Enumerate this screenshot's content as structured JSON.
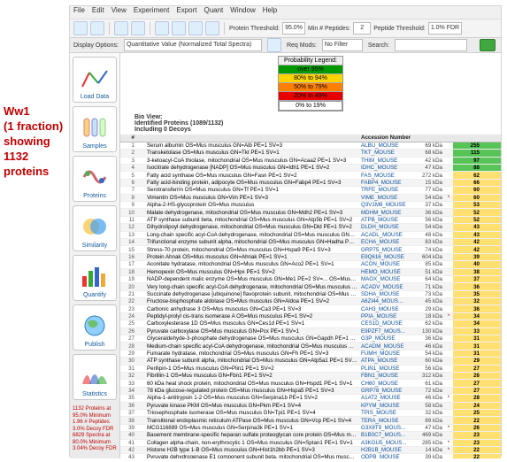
{
  "colors": {
    "accent": "#0a4f9e",
    "annot": "#c00000",
    "legend": [
      "#009900",
      "#ffd400",
      "#ff7f00",
      "#e60000",
      "#ffffff"
    ],
    "bar_best": "#56c456",
    "bar_mid": "#ffe070"
  },
  "annotation": {
    "l1": "Ww1",
    "l2": "(1 fraction)",
    "l3": "showing 1132",
    "l4": "proteins"
  },
  "menu": [
    "File",
    "Edit",
    "View",
    "Experiment",
    "Export",
    "Quant",
    "Window",
    "Help"
  ],
  "toolbar": {
    "protein_thresh_label": "Protein Threshold:",
    "protein_thresh_value": "95.0%",
    "min_pep_label": "Min # Peptides:",
    "min_pep_value": "2",
    "peptide_thresh_label": "Peptide Threshold:",
    "peptide_thresh_value": "1.0% FDR"
  },
  "display": {
    "label": "Display Options:",
    "option": "Quantitative Value (Normalized Total Spectra)",
    "req_label": "Req Mods:",
    "req_value": "No Filter",
    "search_label": "Search:"
  },
  "sidebar": {
    "items": [
      {
        "label": "Load Data",
        "svg": "lines"
      },
      {
        "label": "Samples",
        "svg": "tubes"
      },
      {
        "label": "Proteins",
        "svg": "protein"
      },
      {
        "label": "Similarity",
        "svg": "venn"
      },
      {
        "label": "Quantify",
        "svg": "bars"
      },
      {
        "label": "Publish",
        "svg": "world"
      },
      {
        "label": "Statistics",
        "svg": "curves"
      }
    ]
  },
  "stats": {
    "a": [
      "1132 Proteins at",
      "95.0% Minimum",
      "1.96 # Peptides",
      "3.0% Decoy FDR"
    ],
    "b": [
      "6829 Spectra at",
      "80.0% Minimum",
      "3.04% Decoy FDR"
    ]
  },
  "legend": {
    "title": "Probability Legend:",
    "rows": [
      "over 95%",
      "80% to 94%",
      "50% to 79%",
      "20% to 49%",
      "0% to 19%"
    ]
  },
  "bio": {
    "l1": "Bio View:",
    "l2": "Identified Proteins (1089/1132)",
    "l3": "Including 0 Decoys"
  },
  "head": {
    "acc": "Accession Number",
    "mw": "Molecular Weight",
    "grp": "Protein Grouping/Weight"
  },
  "rows": [
    {
      "n": 1,
      "name": "Serum albumin OS=Mus musculus GN=Alb PE=1 SV=3",
      "acc": "ALBU_MOUSE",
      "mw": "69 kDa",
      "dot": "",
      "v": 255
    },
    {
      "n": 2,
      "name": "Transketolase OS=Mus musculus GN=Tkt PE=1 SV=1",
      "acc": "TKT_MOUSE",
      "mw": "68 kDa",
      "dot": "",
      "v": 115
    },
    {
      "n": 3,
      "name": "3-ketoacyl-CoA thiolase, mitochondrial OS=Mus musculus GN=Acaa2 PE=1 SV=3",
      "acc": "THIM_MOUSE",
      "mw": "42 kDa",
      "dot": "",
      "v": 97
    },
    {
      "n": 4,
      "name": "Isocitrate dehydrogenase [NADP] OS=Mus musculus GN=Idh1 PE=1 SV=2",
      "acc": "IDHC_MOUSE",
      "mw": "47 kDa",
      "dot": "",
      "v": 88
    },
    {
      "n": 5,
      "name": "Fatty acid synthase OS=Mus musculus GN=Fasn PE=1 SV=2",
      "acc": "FAS_MOUSE",
      "mw": "272 kDa",
      "dot": "",
      "v": 62
    },
    {
      "n": 6,
      "name": "Fatty acid-binding protein, adipocyte OS=Mus musculus GN=Fabp4 PE=1 SV=3",
      "acc": "FABP4_MOUSE",
      "mw": "15 kDa",
      "dot": "",
      "v": 66
    },
    {
      "n": 7,
      "name": "Serotransferrin OS=Mus musculus GN=Tf PE=1 SV=1",
      "acc": "TRFE_MOUSE",
      "mw": "77 kDa",
      "dot": "",
      "v": 60
    },
    {
      "n": 8,
      "name": "Vimentin OS=Mus musculus GN=Vim PE=1 SV=3",
      "acc": "VIME_MOUSE",
      "mw": "54 kDa",
      "dot": "*",
      "v": 60
    },
    {
      "n": 9,
      "name": "Alpha-2-HS-glycoprotein OS=Mus musculus",
      "acc": "Q3V1M8_MOUSE",
      "mw": "37 kDa",
      "dot": "",
      "v": 53
    },
    {
      "n": 10,
      "name": "Malate dehydrogenase, mitochondrial OS=Mus musculus GN=Mdh2 PE=1 SV=3",
      "acc": "MDHM_MOUSE",
      "mw": "36 kDa",
      "dot": "",
      "v": 52
    },
    {
      "n": 11,
      "name": "ATP synthase subunit beta, mitochondrial OS=Mus musculus GN=Atp5b PE=1 SV=2",
      "acc": "ATPB_MOUSE",
      "mw": "56 kDa",
      "dot": "",
      "v": 52
    },
    {
      "n": 12,
      "name": "Dihydrolipoyl dehydrogenase, mitochondrial OS=Mus musculus GN=Dld PE=1 SV=2",
      "acc": "DLDH_MOUSE",
      "mw": "54 kDa",
      "dot": "",
      "v": 43
    },
    {
      "n": 13,
      "name": "Long-chain specific acyl-CoA dehydrogenase, mitochondrial OS=Mus musculus GN=Acadl PE=1 S...",
      "acc": "ACADL_MOUSE",
      "mw": "48 kDa",
      "dot": "",
      "v": 43
    },
    {
      "n": 14,
      "name": "Trifunctional enzyme subunit alpha, mitochondrial OS=Mus musculus GN=Hadha PE=1 SV=1",
      "acc": "ECHA_MOUSE",
      "mw": "83 kDa",
      "dot": "",
      "v": 42
    },
    {
      "n": 15,
      "name": "Stress-70 protein, mitochondrial OS=Mus musculus GN=Hspa9 PE=1 SV=3",
      "acc": "GRP75_MOUSE",
      "mw": "74 kDa",
      "dot": "",
      "v": 42
    },
    {
      "n": 16,
      "name": "Protein Ahnak OS=Mus musculus GN=Ahnak PE=1 SV=1",
      "acc": "E9Q616_MOUSE",
      "mw": "604 kDa",
      "dot": "",
      "v": 39
    },
    {
      "n": 17,
      "name": "Aconitate hydratase, mitochondrial OS=Mus musculus GN=Aco2 PE=1 SV=1",
      "acc": "ACON_MOUSE",
      "mw": "85 kDa",
      "dot": "",
      "v": 40
    },
    {
      "n": 18,
      "name": "Hemopexin OS=Mus musculus GN=Hpx PE=1 SV=2",
      "acc": "HEMO_MOUSE",
      "mw": "51 kDa",
      "dot": "",
      "v": 38
    },
    {
      "n": 19,
      "name": "NADP-dependent malic enzyme OS=Mus musculus GN=Me1 PE=2 SV=... OS=Mus musculus GN=Acadvl PE...",
      "acc": "MAOX_MOUSE",
      "mw": "64 kDa",
      "dot": "",
      "v": 37
    },
    {
      "n": 20,
      "name": "Very long-chain specific acyl-CoA dehydrogenase, mitochondrial OS=Mus musculus GN=Acadvl ...",
      "acc": "ACADV_MOUSE",
      "mw": "71 kDa",
      "dot": "",
      "v": 36
    },
    {
      "n": 21,
      "name": "Succinate dehydrogenase [ubiquinone] flavoprotein subunit, mitochondrial OS=Mus musculus ...",
      "acc": "SDHA_MOUSE",
      "mw": "73 kDa",
      "dot": "",
      "v": 35
    },
    {
      "n": 22,
      "name": "Fructose-bisphosphate aldolase OS=Mus musculus GN=Aldoa PE=1 SV=2",
      "acc": "A6ZI44_MOUS...",
      "mw": "45 kDa",
      "dot": "",
      "v": 32
    },
    {
      "n": 23,
      "name": "Carbonic anhydrase 3 OS=Mus musculus GN=Ca3 PE=1 SV=3",
      "acc": "CAH3_MOUSE",
      "mw": "29 kDa",
      "dot": "",
      "v": 36
    },
    {
      "n": 24,
      "name": "Peptidyl-prolyl cis-trans isomerase A OS=Mus musculus PE=1 SV=2",
      "acc": "PPIA_MOUSE",
      "mw": "18 kDa",
      "dot": "*",
      "v": 34
    },
    {
      "n": 25,
      "name": "Carboxylesterase 1D OS=Mus musculus GN=Ces1d PE=1 SV=1",
      "acc": "CES1D_MOUSE",
      "mw": "62 kDa",
      "dot": "",
      "v": 34
    },
    {
      "n": 26,
      "name": "Pyruvate carboxylase OS=Mus musculus GN=Pcx PE=1 SV=1",
      "acc": "E9PZF7_MOUS...",
      "mw": "130 kDa",
      "dot": "",
      "v": 33
    },
    {
      "n": 27,
      "name": "Glyceraldehyde-3-phosphate dehydrogenase OS=Mus musculus GN=Gapdh PE=1 SV=2",
      "acc": "G3P_MOUSE",
      "mw": "36 kDa",
      "dot": "",
      "v": 31
    },
    {
      "n": 28,
      "name": "Medium-chain specific acyl-CoA dehydrogenase, mitochondrial OS=Mus musculus GN=Acadm PE=...",
      "acc": "ACADM_MOUSE",
      "mw": "46 kDa",
      "dot": "",
      "v": 31
    },
    {
      "n": 29,
      "name": "Fumarate hydratase, mitochondrial OS=Mus musculus GN=Fh PE=1 SV=3",
      "acc": "FUMH_MOUSE",
      "mw": "54 kDa",
      "dot": "",
      "v": 31
    },
    {
      "n": 30,
      "name": "ATP synthase subunit alpha, mitochondrial OS=Mus musculus GN=Atp5a1 PE=1 SV=1",
      "acc": "ATPA_MOUSE",
      "mw": "60 kDa",
      "dot": "",
      "v": 29
    },
    {
      "n": 31,
      "name": "Perilipin-1 OS=Mus musculus GN=Plin1 PE=1 SV=2",
      "acc": "PLIN1_MOUSE",
      "mw": "56 kDa",
      "dot": "",
      "v": 27
    },
    {
      "n": 32,
      "name": "Fibrillin-1 OS=Mus musculus GN=Fbn1 PE=1 SV=2",
      "acc": "FBN1_MOUSE",
      "mw": "312 kDa",
      "dot": "",
      "v": 26
    },
    {
      "n": 33,
      "name": "60 kDa heat shock protein, mitochondrial OS=Mus musculus GN=Hspd1 PE=1 SV=1",
      "acc": "CH60_MOUSE",
      "mw": "61 kDa",
      "dot": "",
      "v": 27
    },
    {
      "n": 34,
      "name": "78 kDa glucose-regulated protein OS=Mus musculus GN=Hspa5 PE=1 SV=3",
      "acc": "GRP78_MOUSE",
      "mw": "72 kDa",
      "dot": "",
      "v": 27
    },
    {
      "n": 35,
      "name": "Alpha-1-antitrypsin 1-2 OS=Mus musculus GN=Serpina1b PE=1 SV=2",
      "acc": "A1AT2_MOUSE",
      "mw": "46 kDa",
      "dot": "*",
      "v": 28
    },
    {
      "n": 36,
      "name": "Pyruvate kinase PKM OS=Mus musculus GN=Pkm PE=1 SV=4",
      "acc": "KPYM_MOUSE",
      "mw": "58 kDa",
      "dot": "",
      "v": 24
    },
    {
      "n": 37,
      "name": "Triosephosphate isomerase OS=Mus musculus GN=Tpi1 PE=1 SV=4",
      "acc": "TPIS_MOUSE",
      "mw": "32 kDa",
      "dot": "",
      "v": 25
    },
    {
      "n": 38,
      "name": "Transitional endoplasmic reticulum ATPase OS=Mus musculus GN=Vcp PE=1 SV=4",
      "acc": "TERA_MOUSE",
      "mw": "89 kDa",
      "dot": "",
      "v": 22
    },
    {
      "n": 39,
      "name": "MCG116889 OS=Mus musculus GN=Serpina3k PE=1 SV=1",
      "acc": "G3X8T9_MOUS...",
      "mw": "47 kDa",
      "dot": "*",
      "v": 26
    },
    {
      "n": 40,
      "name": "Basement membrane-specific heparan sulfate proteoglycan core protein OS=Mus musculus GN=...",
      "acc": "B1B0C7_MOUS...",
      "mw": "469 kDa",
      "dot": "",
      "v": 23
    },
    {
      "n": 41,
      "name": "Collagen alpha-chain, non-erythrocytic 1 OS=Mus musculus GN=Sptan1 PE=1 SV=1",
      "acc": "A3KGU5_MOUS...",
      "mw": "285 kDa",
      "dot": "*",
      "v": 23
    },
    {
      "n": 42,
      "name": "Histone H2B type 1-B OS=Mus musculus GN=Hist1h2bb PE=1 SV=3",
      "acc": "H2B1B_MOUSE",
      "mw": "14 kDa",
      "dot": "*",
      "v": 22
    },
    {
      "n": 43,
      "name": "Pyruvate dehydrogenase E1 component subunit beta, mitochondrial OS=Mus musculus GN=Pdhb ...",
      "acc": "ODPB_MOUSE",
      "mw": "39 kDa",
      "dot": "",
      "v": 22
    },
    {
      "n": 44,
      "name": "2-oxoglutarate dehydrogenase, mitochondrial OS=Mus musculus GN=Ogdh PE=1 SV=3",
      "acc": "ODO1_MOUSE",
      "mw": "116 kDa",
      "dot": "",
      "v": 20
    },
    {
      "n": 45,
      "name": "Complement C3 OS=Mus musculus GN=C3 PE=1 SV=3",
      "acc": "CO3_MOUSE",
      "mw": "186 kDa",
      "dot": "*",
      "v": 20
    },
    {
      "n": 46,
      "name": "Cytochrome c oxidase subunit 5A, mitochondrial OS=Mus musculus GN=Cox5a PE=1 SV=2",
      "acc": "COX5A_MOUSE",
      "mw": "16 kDa",
      "dot": "",
      "v": 19
    }
  ]
}
